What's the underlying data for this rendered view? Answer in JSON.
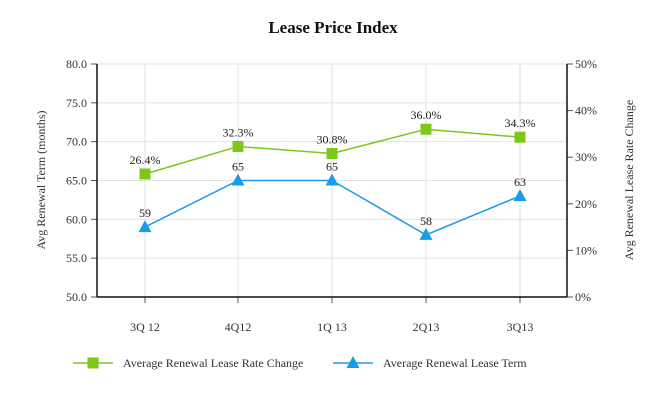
{
  "chart_data": {
    "type": "line",
    "title": "Lease Price Index",
    "categories": [
      "3Q 12",
      "4Q12",
      "1Q 13",
      "2Q13",
      "3Q13"
    ],
    "xlabel": "",
    "y_left": {
      "label": "Avg Renewal Term (months)",
      "range": [
        50,
        80
      ],
      "ticks": [
        "50.0",
        "55.0",
        "60.0",
        "65.0",
        "70.0",
        "75.0",
        "80.0"
      ],
      "tick_values": [
        50,
        55,
        60,
        65,
        70,
        75,
        80
      ]
    },
    "y_right": {
      "label": "Avg Renewal Lease Rate Change",
      "range": [
        0,
        50
      ],
      "ticks": [
        "0%",
        "10%",
        "20%",
        "30%",
        "40%",
        "50%"
      ],
      "tick_values": [
        0,
        10,
        20,
        30,
        40,
        50
      ]
    },
    "grid": true,
    "legend_position": "bottom",
    "series": [
      {
        "name": "Average Renewal Lease Rate Change",
        "axis": "right",
        "marker": "square",
        "color": "#7dc71a",
        "values": [
          26.4,
          32.3,
          30.8,
          36.0,
          34.3
        ],
        "labels": [
          "26.4%",
          "32.3%",
          "30.8%",
          "36.0%",
          "34.3%"
        ]
      },
      {
        "name": "Average Renewal Lease Term",
        "axis": "left",
        "marker": "triangle",
        "color": "#1a9be8",
        "values": [
          59,
          65,
          65,
          58,
          63
        ],
        "labels": [
          "59",
          "65",
          "65",
          "58",
          "63"
        ]
      }
    ]
  }
}
